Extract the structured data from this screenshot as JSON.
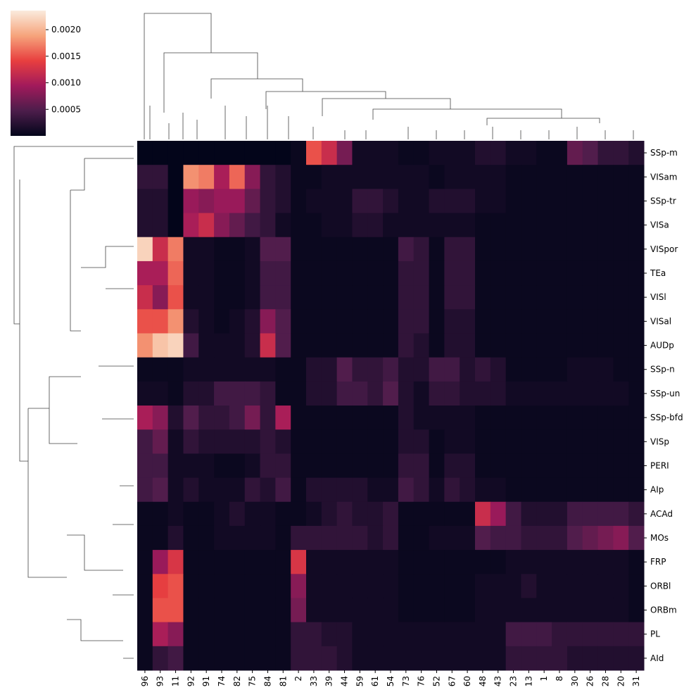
{
  "chart_data": {
    "type": "heatmap",
    "x": [
      "96",
      "93",
      "11",
      "92",
      "91",
      "74",
      "82",
      "75",
      "84",
      "81",
      "2",
      "33",
      "39",
      "44",
      "59",
      "61",
      "54",
      "73",
      "76",
      "52",
      "67",
      "60",
      "48",
      "43",
      "23",
      "13",
      "1",
      "8",
      "30",
      "26",
      "28",
      "20",
      "31"
    ],
    "y": [
      "SSp-m",
      "VISam",
      "SSp-tr",
      "VISa",
      "VISpor",
      "TEa",
      "VISl",
      "VISal",
      "AUDp",
      "SSp-n",
      "SSp-un",
      "SSp-bfd",
      "VISp",
      "PERI",
      "AIp",
      "ACAd",
      "MOs",
      "FRP",
      "ORBl",
      "ORBm",
      "PL",
      "AId"
    ],
    "values": [
      [
        0,
        0,
        0,
        0,
        0,
        0,
        0,
        0,
        0,
        0,
        5e-05,
        0.0015,
        0.0012,
        0.0007,
        0.0001,
        0.0001,
        0.0001,
        5e-05,
        5e-05,
        0.0001,
        0.0001,
        0.0001,
        0.0002,
        0.0002,
        0.0001,
        0.0001,
        5e-05,
        5e-05,
        0.0006,
        0.0005,
        0.0003,
        0.0003,
        0.0002
      ],
      [
        0.0003,
        0.0003,
        0,
        0.0018,
        0.0017,
        0.001,
        0.0016,
        0.0008,
        0.0003,
        0.0002,
        5e-05,
        5e-05,
        0.0001,
        0.0001,
        0.0001,
        0.0001,
        0.0001,
        0.0001,
        0.0001,
        5e-05,
        0.0001,
        0.0001,
        0.0001,
        0.0001,
        5e-05,
        5e-05,
        5e-05,
        5e-05,
        5e-05,
        5e-05,
        5e-05,
        5e-05,
        5e-05
      ],
      [
        0.0002,
        0.0002,
        0,
        0.0009,
        0.0008,
        0.0009,
        0.0009,
        0.0006,
        0.0003,
        0.0002,
        5e-05,
        0.0001,
        0.0001,
        0.0001,
        0.0003,
        0.0003,
        0.0002,
        0.0001,
        0.0001,
        0.0002,
        0.0002,
        0.0002,
        0.0001,
        0.0001,
        5e-05,
        5e-05,
        5e-05,
        5e-05,
        5e-05,
        5e-05,
        5e-05,
        5e-05,
        5e-05
      ],
      [
        0.0002,
        0.0002,
        0,
        0.001,
        0.0012,
        0.0008,
        0.0006,
        0.0004,
        0.0003,
        0.0001,
        5e-05,
        5e-05,
        0.0001,
        0.0001,
        0.0002,
        0.0002,
        0.0001,
        0.0001,
        0.0001,
        0.0001,
        0.0001,
        0.0001,
        5e-05,
        5e-05,
        5e-05,
        5e-05,
        5e-05,
        5e-05,
        5e-05,
        5e-05,
        5e-05,
        5e-05,
        5e-05
      ],
      [
        0.0022,
        0.0012,
        0.0017,
        0.0001,
        0.0001,
        5e-05,
        5e-05,
        0.0001,
        0.0005,
        0.0005,
        5e-05,
        5e-05,
        5e-05,
        5e-05,
        5e-05,
        5e-05,
        5e-05,
        0.0004,
        0.0003,
        5e-05,
        0.0003,
        0.0003,
        5e-05,
        5e-05,
        5e-05,
        5e-05,
        5e-05,
        5e-05,
        5e-05,
        5e-05,
        5e-05,
        5e-05,
        5e-05
      ],
      [
        0.001,
        0.001,
        0.0016,
        0.0001,
        0.0001,
        5e-05,
        5e-05,
        0.0001,
        0.0004,
        0.0004,
        5e-05,
        5e-05,
        5e-05,
        5e-05,
        5e-05,
        5e-05,
        5e-05,
        0.0003,
        0.0003,
        5e-05,
        0.0003,
        0.0003,
        5e-05,
        5e-05,
        5e-05,
        5e-05,
        5e-05,
        5e-05,
        5e-05,
        5e-05,
        5e-05,
        5e-05,
        5e-05
      ],
      [
        0.0012,
        0.0008,
        0.0015,
        0.0001,
        0.0001,
        5e-05,
        5e-05,
        0.0001,
        0.0004,
        0.0004,
        5e-05,
        5e-05,
        5e-05,
        5e-05,
        5e-05,
        5e-05,
        5e-05,
        0.0003,
        0.0003,
        5e-05,
        0.0003,
        0.0003,
        5e-05,
        5e-05,
        5e-05,
        5e-05,
        5e-05,
        5e-05,
        5e-05,
        5e-05,
        5e-05,
        5e-05,
        5e-05
      ],
      [
        0.0015,
        0.0015,
        0.0018,
        0.0002,
        0.0001,
        5e-05,
        0.0001,
        0.0002,
        0.0008,
        0.0005,
        5e-05,
        5e-05,
        5e-05,
        5e-05,
        5e-05,
        5e-05,
        5e-05,
        0.0003,
        0.0003,
        5e-05,
        0.0002,
        0.0002,
        5e-05,
        5e-05,
        5e-05,
        5e-05,
        5e-05,
        5e-05,
        5e-05,
        5e-05,
        5e-05,
        5e-05,
        5e-05
      ],
      [
        0.0018,
        0.0021,
        0.0022,
        0.0004,
        0.0001,
        0.0001,
        0.0001,
        0.0002,
        0.0012,
        0.0005,
        5e-05,
        5e-05,
        5e-05,
        5e-05,
        5e-05,
        5e-05,
        5e-05,
        0.0003,
        0.0002,
        5e-05,
        0.0002,
        0.0002,
        5e-05,
        5e-05,
        5e-05,
        5e-05,
        5e-05,
        5e-05,
        5e-05,
        5e-05,
        5e-05,
        5e-05,
        5e-05
      ],
      [
        5e-05,
        5e-05,
        5e-05,
        0.0001,
        0.0001,
        0.0001,
        0.0001,
        0.0001,
        0.0001,
        5e-05,
        5e-05,
        0.0002,
        0.0002,
        0.0005,
        0.0003,
        0.0003,
        0.0004,
        0.0002,
        0.0002,
        0.0004,
        0.0004,
        0.0002,
        0.0003,
        0.0002,
        5e-05,
        5e-05,
        5e-05,
        5e-05,
        0.0001,
        0.0001,
        0.0001,
        5e-05,
        5e-05
      ],
      [
        0.0001,
        0.0001,
        5e-05,
        0.0002,
        0.0002,
        0.0004,
        0.0004,
        0.0004,
        0.0003,
        5e-05,
        5e-05,
        0.0002,
        0.0002,
        0.0004,
        0.0004,
        0.0003,
        0.0005,
        0.0002,
        0.0001,
        0.0003,
        0.0003,
        0.0002,
        0.0002,
        0.0002,
        0.0001,
        0.0001,
        0.0001,
        0.0001,
        0.0001,
        0.0001,
        0.0001,
        0.0001,
        5e-05
      ],
      [
        0.001,
        0.0008,
        0.0002,
        0.0005,
        0.0003,
        0.0003,
        0.0004,
        0.0007,
        0.0003,
        0.001,
        5e-05,
        5e-05,
        5e-05,
        5e-05,
        5e-05,
        5e-05,
        5e-05,
        0.0002,
        0.0001,
        0.0001,
        0.0001,
        0.0001,
        5e-05,
        5e-05,
        5e-05,
        5e-05,
        5e-05,
        5e-05,
        5e-05,
        5e-05,
        5e-05,
        5e-05,
        5e-05
      ],
      [
        0.0004,
        0.0006,
        0.0001,
        0.0003,
        0.0002,
        0.0002,
        0.0002,
        0.0002,
        0.0003,
        0.0002,
        5e-05,
        5e-05,
        5e-05,
        5e-05,
        5e-05,
        5e-05,
        5e-05,
        0.0002,
        0.0002,
        5e-05,
        0.0001,
        0.0001,
        5e-05,
        5e-05,
        5e-05,
        5e-05,
        5e-05,
        5e-05,
        5e-05,
        5e-05,
        5e-05,
        5e-05,
        5e-05
      ],
      [
        0.0004,
        0.0004,
        0.0001,
        0.0001,
        0.0001,
        5e-05,
        5e-05,
        0.0001,
        0.0003,
        0.0003,
        5e-05,
        5e-05,
        5e-05,
        5e-05,
        5e-05,
        5e-05,
        5e-05,
        0.0003,
        0.0003,
        5e-05,
        0.0002,
        0.0002,
        5e-05,
        5e-05,
        5e-05,
        5e-05,
        5e-05,
        5e-05,
        5e-05,
        5e-05,
        5e-05,
        5e-05,
        5e-05
      ],
      [
        0.0004,
        0.0005,
        0.0001,
        0.0002,
        0.0001,
        0.0001,
        0.0001,
        0.0003,
        0.0002,
        0.0004,
        5e-05,
        0.0002,
        0.0002,
        0.0002,
        0.0002,
        0.0001,
        0.0001,
        0.0004,
        0.0003,
        0.0001,
        0.0003,
        0.0002,
        0.0001,
        0.0001,
        5e-05,
        5e-05,
        5e-05,
        5e-05,
        5e-05,
        5e-05,
        5e-05,
        5e-05,
        5e-05
      ],
      [
        5e-05,
        5e-05,
        0.0001,
        5e-05,
        5e-05,
        0.0001,
        0.0002,
        0.0001,
        0.0001,
        5e-05,
        5e-05,
        0.0001,
        0.0002,
        0.0003,
        0.0002,
        0.0002,
        0.0003,
        5e-05,
        5e-05,
        5e-05,
        5e-05,
        5e-05,
        0.0012,
        0.0009,
        0.0004,
        0.0002,
        0.0002,
        0.0002,
        0.0004,
        0.0004,
        0.0004,
        0.0004,
        0.0003
      ],
      [
        5e-05,
        5e-05,
        0.0002,
        5e-05,
        5e-05,
        0.0001,
        0.0001,
        0.0001,
        0.0001,
        5e-05,
        0.0003,
        0.0003,
        0.0003,
        0.0003,
        0.0003,
        0.0002,
        0.0003,
        5e-05,
        5e-05,
        0.0001,
        0.0001,
        0.0001,
        0.0005,
        0.0004,
        0.0004,
        0.0003,
        0.0003,
        0.0003,
        0.0005,
        0.0006,
        0.0007,
        0.0008,
        0.0005
      ],
      [
        5e-05,
        0.0009,
        0.0013,
        5e-05,
        5e-05,
        5e-05,
        5e-05,
        5e-05,
        5e-05,
        5e-05,
        0.0013,
        0.0001,
        0.0001,
        0.0001,
        0.0001,
        0.0001,
        0.0001,
        5e-05,
        5e-05,
        5e-05,
        5e-05,
        5e-05,
        5e-05,
        5e-05,
        0.0001,
        0.0001,
        0.0001,
        0.0001,
        0.0001,
        0.0001,
        0.0001,
        0.0001,
        5e-05
      ],
      [
        5e-05,
        0.0014,
        0.0015,
        5e-05,
        5e-05,
        5e-05,
        5e-05,
        5e-05,
        5e-05,
        5e-05,
        0.0008,
        0.0001,
        0.0001,
        0.0001,
        0.0001,
        0.0001,
        0.0001,
        5e-05,
        5e-05,
        5e-05,
        5e-05,
        5e-05,
        0.0001,
        0.0001,
        0.0001,
        0.0002,
        0.0001,
        0.0001,
        0.0001,
        0.0001,
        0.0001,
        0.0001,
        5e-05
      ],
      [
        5e-05,
        0.0015,
        0.0015,
        5e-05,
        5e-05,
        5e-05,
        5e-05,
        5e-05,
        5e-05,
        5e-05,
        0.0007,
        0.0001,
        0.0001,
        0.0001,
        0.0001,
        0.0001,
        0.0001,
        5e-05,
        5e-05,
        5e-05,
        5e-05,
        5e-05,
        0.0001,
        0.0001,
        0.0001,
        0.0001,
        0.0001,
        0.0001,
        0.0001,
        0.0001,
        0.0001,
        0.0001,
        5e-05
      ],
      [
        5e-05,
        0.001,
        0.0008,
        5e-05,
        5e-05,
        5e-05,
        5e-05,
        5e-05,
        5e-05,
        5e-05,
        0.0003,
        0.0003,
        0.0002,
        0.0002,
        0.0001,
        0.0001,
        0.0001,
        0.0001,
        0.0001,
        0.0001,
        0.0001,
        0.0001,
        0.0001,
        0.0001,
        0.0004,
        0.0004,
        0.0004,
        0.0003,
        0.0003,
        0.0003,
        0.0003,
        0.0003,
        0.0003
      ],
      [
        5e-05,
        0.0003,
        0.0004,
        5e-05,
        5e-05,
        5e-05,
        5e-05,
        5e-05,
        5e-05,
        5e-05,
        0.0003,
        0.0003,
        0.0003,
        0.0002,
        0.0001,
        0.0001,
        0.0001,
        0.0001,
        0.0001,
        0.0001,
        0.0001,
        0.0001,
        0.0001,
        0.0001,
        0.0003,
        0.0003,
        0.0003,
        0.0003,
        0.0002,
        0.0002,
        0.0002,
        0.0002,
        0.0002
      ]
    ],
    "colormap": [
      "#03051a",
      "#4c1d4b",
      "#a11a5b",
      "#e83f3f",
      "#f6a47c",
      "#faebdd"
    ],
    "colorbar": {
      "lim": [
        0,
        0.00236
      ],
      "ticks": [
        0.0005,
        {
          "value": 0.001,
          "label": "0.0010"
        },
        0.0015,
        {
          "value": 0.002,
          "label": "0.0020"
        }
      ]
    }
  }
}
